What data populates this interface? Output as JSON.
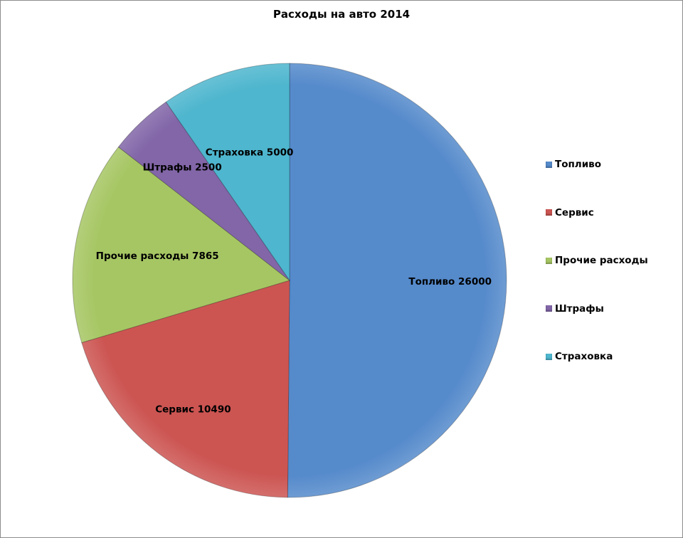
{
  "chart_data": {
    "type": "pie",
    "title": "Расходы на авто 2014",
    "categories": [
      "Топливо",
      "Сервис",
      "Прочие расходы",
      "Штрафы",
      "Страховка"
    ],
    "values": [
      26000,
      10490,
      7865,
      2500,
      5000
    ],
    "colors": [
      "#558ACB",
      "#CC5552",
      "#A6C663",
      "#8266A8",
      "#4EB6CE"
    ],
    "data_labels": [
      "Топливо 26000",
      "Сервис 10490",
      "Прочие расходы 7865",
      "Штрафы 2500",
      "Страховка 5000"
    ],
    "start_angle": "top",
    "direction": "clockwise",
    "legend_position": "right"
  }
}
